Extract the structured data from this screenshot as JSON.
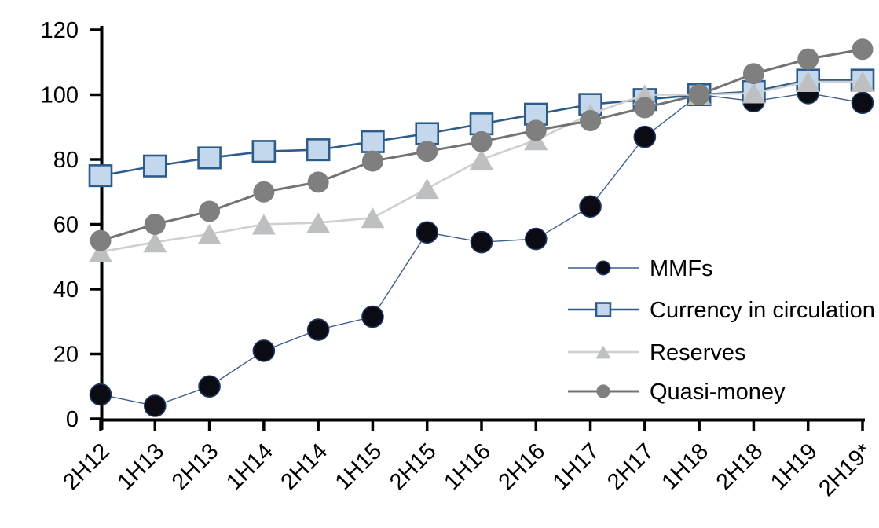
{
  "chart_data": {
    "type": "line",
    "title": "",
    "xlabel": "",
    "ylabel": "",
    "grid": "off",
    "legend_position": "inside-right",
    "categories": [
      "2H12",
      "1H13",
      "2H13",
      "1H14",
      "2H14",
      "1H15",
      "2H15",
      "1H16",
      "2H16",
      "1H17",
      "2H17",
      "1H18",
      "2H18",
      "1H19",
      "2H19*"
    ],
    "y_axis": {
      "min": 0,
      "max": 120,
      "step": 20,
      "ticks": [
        0,
        20,
        40,
        60,
        80,
        100,
        120
      ],
      "tick_labels": [
        "0",
        "20",
        "40",
        "60",
        "80",
        "100",
        "120"
      ]
    },
    "x_axis": {
      "labels_rotation_deg": -45
    },
    "series": [
      {
        "name": "MMFs",
        "marker": "circle",
        "marker_fill": "#0b0b13",
        "marker_stroke": "#1f3864",
        "line_color": "#3f5e8e",
        "line_width": 1.4,
        "values": [
          7.5,
          4,
          10,
          21,
          27.5,
          31.5,
          57.5,
          54.5,
          55.5,
          65.5,
          87,
          100,
          98,
          100.5,
          97.5
        ]
      },
      {
        "name": "Currency in circulation",
        "marker": "square",
        "marker_fill": "#c3d8ec",
        "marker_stroke": "#2e5c8a",
        "line_color": "#2e5c8a",
        "line_width": 2.6,
        "values": [
          75,
          78,
          80.5,
          82.5,
          83,
          85.5,
          88,
          91,
          94,
          97,
          98.5,
          100,
          101,
          104.5,
          104.5
        ]
      },
      {
        "name": "Reserves",
        "marker": "triangle",
        "marker_fill": "#bdbfc1",
        "marker_stroke": "none",
        "line_color": "#cdcfd1",
        "line_width": 2.6,
        "values": [
          51.5,
          54.5,
          57,
          60,
          60.5,
          62,
          71,
          80,
          86,
          94,
          100,
          100,
          100.5,
          104,
          104
        ]
      },
      {
        "name": "Quasi-money",
        "marker": "circle",
        "marker_fill": "#7f7f7f",
        "marker_stroke": "none",
        "line_color": "#737373",
        "line_width": 3,
        "values": [
          55,
          60,
          64,
          70,
          73,
          79.5,
          82.5,
          85.5,
          89,
          92,
          96,
          100,
          106.5,
          111,
          114
        ]
      }
    ],
    "legend": {
      "items": [
        "MMFs",
        "Currency in circulation",
        "Reserves",
        "Quasi-money"
      ]
    }
  }
}
